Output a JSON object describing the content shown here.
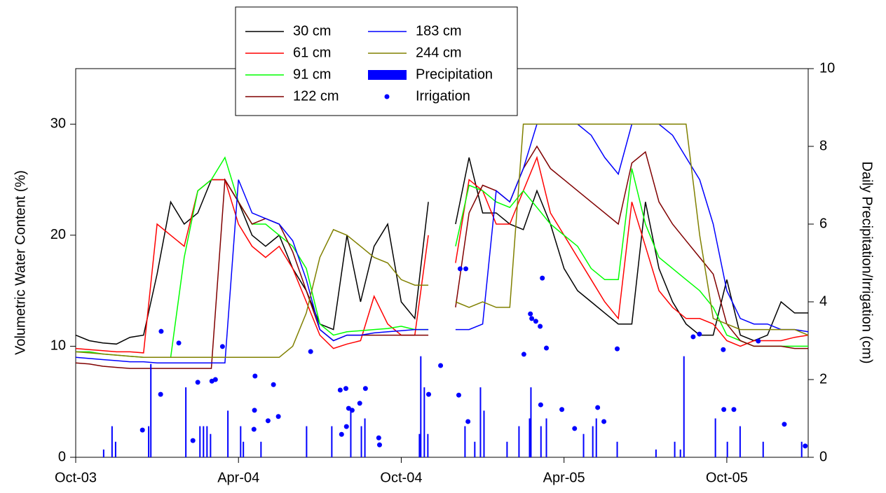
{
  "chart_data": {
    "type": "line",
    "y_label": "Volumetric Water Content (%)",
    "y2_label": "Daily Precipitation/Irrigation (cm)",
    "xlim": [
      0,
      27
    ],
    "xticks": [
      {
        "value": 0,
        "label": "Oct-03"
      },
      {
        "value": 6,
        "label": "Apr-04"
      },
      {
        "value": 12,
        "label": "Oct-04"
      },
      {
        "value": 18,
        "label": "Apr-05"
      },
      {
        "value": 24,
        "label": "Oct-05"
      }
    ],
    "ylim": [
      0,
      35
    ],
    "yticks": [
      0,
      10,
      20,
      30
    ],
    "y2lim": [
      0,
      10
    ],
    "y2ticks": [
      0,
      2,
      4,
      6,
      8,
      10
    ],
    "x": [
      0,
      0.5,
      1,
      1.5,
      2,
      2.5,
      3,
      3.5,
      4,
      4.5,
      5,
      5.5,
      6,
      6.5,
      7,
      7.5,
      8,
      8.5,
      9,
      9.5,
      10,
      10.5,
      11,
      11.5,
      12,
      12.5,
      13,
      13.5,
      14,
      14.5,
      15,
      15.5,
      16,
      16.5,
      17,
      17.5,
      18,
      18.5,
      19,
      19.5,
      20,
      20.5,
      21,
      21.5,
      22,
      22.5,
      23,
      23.5,
      24,
      24.5,
      25,
      25.5,
      26,
      26.5,
      27
    ],
    "series": [
      {
        "name": "30 cm",
        "color": "#000000",
        "values": [
          11,
          10.5,
          10.3,
          10.2,
          10.8,
          11,
          16.5,
          23,
          21,
          22,
          25,
          25,
          23,
          20,
          19,
          20,
          17,
          15,
          12,
          11.5,
          20,
          14,
          19,
          21,
          14,
          12.5,
          23,
          null,
          21,
          27,
          22,
          22,
          21,
          20.5,
          24,
          21,
          17,
          15,
          14,
          13,
          12,
          12,
          23,
          17,
          14,
          12,
          11,
          11,
          16,
          11,
          10.5,
          11,
          14,
          13,
          13
        ]
      },
      {
        "name": "61 cm",
        "color": "#ff0000",
        "values": [
          9.8,
          9.7,
          9.6,
          9.5,
          9.5,
          9.4,
          21,
          20,
          19,
          24,
          25,
          25,
          21,
          19,
          18,
          19,
          17,
          14,
          11,
          9.8,
          10.2,
          10.5,
          14.5,
          12,
          11,
          11,
          20,
          null,
          17.5,
          25,
          24,
          21,
          21,
          24,
          27,
          22,
          20,
          18,
          16,
          14,
          12.5,
          23,
          19,
          15,
          13.5,
          12.5,
          12.5,
          12,
          10.5,
          10,
          10.5,
          10.5,
          10.5,
          10.8,
          11
        ]
      },
      {
        "name": "91 cm",
        "color": "#00ff00",
        "values": [
          9.5,
          9.5,
          9.3,
          9.2,
          9.1,
          9.0,
          9,
          9,
          18,
          24,
          25,
          27,
          23,
          21,
          21,
          20,
          19,
          17,
          12,
          11,
          11.3,
          11.4,
          11.5,
          11.6,
          11.8,
          11.5,
          11.5,
          null,
          19,
          24.5,
          24,
          23,
          22.5,
          24,
          22.5,
          21,
          20,
          19,
          17,
          16,
          16,
          26,
          21,
          18,
          17,
          16,
          15,
          13.5,
          11,
          10.5,
          10,
          10,
          10,
          10,
          10
        ]
      },
      {
        "name": "122 cm",
        "color": "#800000",
        "values": [
          8.5,
          8.4,
          8.2,
          8.1,
          8.0,
          8.0,
          8,
          8,
          8,
          8,
          8,
          25,
          23,
          21,
          21.5,
          21,
          18.5,
          15,
          11.5,
          10.5,
          11,
          11,
          11,
          11,
          11,
          11,
          11,
          null,
          13.5,
          22,
          24.5,
          24,
          23,
          26,
          28,
          26,
          25,
          24,
          23,
          22,
          21,
          26.5,
          27.5,
          23,
          21,
          19.5,
          18,
          16.5,
          12,
          10.5,
          10,
          10,
          10,
          9.8,
          9.8
        ]
      },
      {
        "name": "183 cm",
        "color": "#0000ff",
        "values": [
          9,
          8.9,
          8.8,
          8.7,
          8.6,
          8.6,
          8.5,
          8.5,
          8.5,
          8.5,
          8.5,
          8.5,
          25,
          22,
          21.5,
          21,
          19.5,
          16,
          11.5,
          10.5,
          11,
          11,
          11.2,
          11.3,
          11.4,
          11.5,
          11.5,
          null,
          11.5,
          11.5,
          12,
          24,
          23,
          26,
          30,
          30,
          30,
          30,
          29,
          27,
          25.5,
          30,
          30,
          30,
          29,
          27,
          25,
          21,
          15,
          12.5,
          12,
          12,
          11.5,
          11.5,
          11.3
        ]
      },
      {
        "name": "244 cm",
        "color": "#808000",
        "values": [
          9.5,
          9.4,
          9.3,
          9.2,
          9.1,
          9.0,
          9,
          9,
          9,
          9,
          9,
          9,
          9,
          9,
          9,
          9,
          10,
          13,
          18,
          20.5,
          20,
          19,
          18,
          17.5,
          16,
          15.5,
          15.5,
          null,
          14,
          13.5,
          14,
          13.5,
          13.5,
          30,
          30,
          30,
          30,
          30,
          30,
          30,
          30,
          30,
          30,
          30,
          30,
          30,
          20,
          12.5,
          12,
          11.5,
          11.5,
          11.5,
          11.5,
          11.5,
          11
        ]
      },
      {
        "name": "Precipitation",
        "type": "bar",
        "axis": "y2",
        "color": "#0000ff",
        "x": [
          1.03,
          1.34,
          1.47,
          2.69,
          2.77,
          4.06,
          4.58,
          4.71,
          4.84,
          4.97,
          5.61,
          6.08,
          6.18,
          6.83,
          8.51,
          9.44,
          10.14,
          10.53,
          10.66,
          12.67,
          12.72,
          12.85,
          12.98,
          14.35,
          14.71,
          14.92,
          15.05,
          15.9,
          16.34,
          16.73,
          16.78,
          17.15,
          17.35,
          18.72,
          19.06,
          19.19,
          19.96,
          21.39,
          22.08,
          22.29,
          22.42,
          23.58,
          24.02,
          24.49,
          25.34,
          26.76
        ],
        "values": [
          0.2,
          0.8,
          0.4,
          0.8,
          2.4,
          1.8,
          0.8,
          0.8,
          0.8,
          0.6,
          1.2,
          0.8,
          0.4,
          0.4,
          0.8,
          0.8,
          1.2,
          0.8,
          1.0,
          0.6,
          2.6,
          1.8,
          0.6,
          0.8,
          0.4,
          1.8,
          1.2,
          0.4,
          0.8,
          1.0,
          1.8,
          0.8,
          1.0,
          0.6,
          0.8,
          1.0,
          0.4,
          0.2,
          0.4,
          0.2,
          2.6,
          1.0,
          0.4,
          0.8,
          0.4,
          0.4
        ]
      },
      {
        "name": "Irrigation",
        "type": "scatter",
        "axis": "y2",
        "color": "#0000ff",
        "x": [
          2.46,
          3.15,
          3.13,
          3.8,
          4.32,
          4.5,
          5.02,
          5.15,
          5.41,
          6.57,
          6.59,
          6.61,
          7.09,
          7.29,
          7.47,
          8.66,
          9.75,
          9.8,
          9.96,
          9.98,
          10.06,
          10.19,
          10.47,
          10.68,
          11.17,
          11.2,
          13.01,
          13.45,
          14.12,
          14.17,
          14.38,
          14.46,
          16.52,
          16.76,
          16.81,
          16.96,
          17.12,
          17.14,
          17.2,
          17.35,
          17.92,
          18.39,
          19.24,
          19.47,
          19.96,
          22.76,
          22.99,
          23.87,
          23.89,
          24.26,
          25.16,
          26.12,
          26.89
        ],
        "values": [
          0.7,
          3.24,
          1.62,
          2.94,
          0.43,
          1.93,
          1.96,
          2.0,
          2.85,
          0.72,
          1.21,
          2.09,
          0.94,
          1.87,
          1.05,
          2.72,
          1.73,
          0.59,
          1.77,
          0.79,
          1.26,
          1.21,
          1.39,
          1.77,
          0.5,
          0.32,
          1.62,
          2.36,
          1.6,
          4.85,
          4.85,
          0.92,
          2.65,
          3.69,
          3.57,
          3.5,
          3.37,
          1.35,
          4.61,
          2.81,
          1.23,
          0.74,
          1.28,
          0.92,
          2.79,
          3.1,
          3.17,
          2.77,
          1.23,
          1.23,
          2.99,
          0.85,
          0.29
        ]
      }
    ]
  }
}
